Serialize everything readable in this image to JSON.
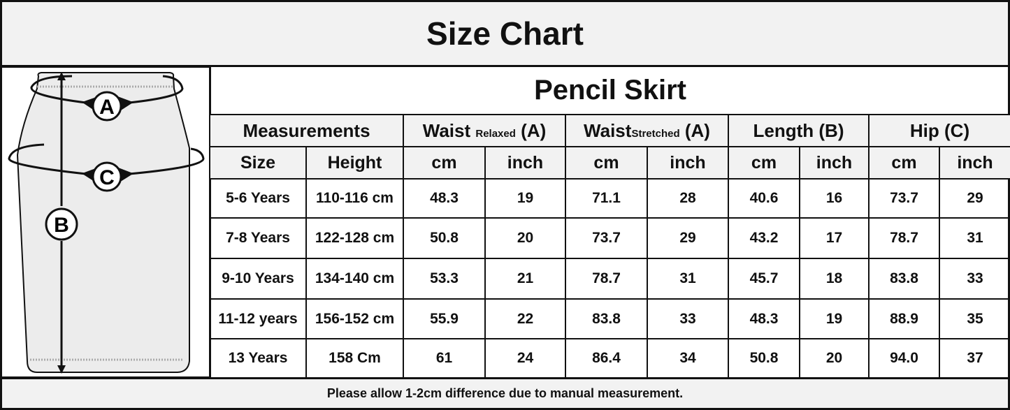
{
  "title": "Size Chart",
  "product": "Pencil Skirt",
  "diagram": {
    "labels": [
      "A",
      "C",
      "B"
    ]
  },
  "groups": {
    "measurements": "Measurements",
    "waist_relaxed": {
      "main": "Waist",
      "sub": "Relaxed",
      "mark": "(A)"
    },
    "waist_stretched": {
      "main": "Waist",
      "sub": "Stretched",
      "mark": "(A)"
    },
    "length": "Length (B)",
    "hip": "Hip (C)"
  },
  "columns": [
    "Size",
    "Height",
    "cm",
    "inch",
    "cm",
    "inch",
    "cm",
    "inch",
    "cm",
    "inch"
  ],
  "rows": [
    [
      "5-6 Years",
      "110-116 cm",
      "48.3",
      "19",
      "71.1",
      "28",
      "40.6",
      "16",
      "73.7",
      "29"
    ],
    [
      "7-8 Years",
      "122-128 cm",
      "50.8",
      "20",
      "73.7",
      "29",
      "43.2",
      "17",
      "78.7",
      "31"
    ],
    [
      "9-10 Years",
      "134-140 cm",
      "53.3",
      "21",
      "78.7",
      "31",
      "45.7",
      "18",
      "83.8",
      "33"
    ],
    [
      "11-12 years",
      "156-152 cm",
      "55.9",
      "22",
      "83.8",
      "33",
      "48.3",
      "19",
      "88.9",
      "35"
    ],
    [
      "13 Years",
      "158 Cm",
      "61",
      "24",
      "86.4",
      "34",
      "50.8",
      "20",
      "94.0",
      "37"
    ]
  ],
  "footer": "Please allow 1-2cm difference due to manual measurement."
}
